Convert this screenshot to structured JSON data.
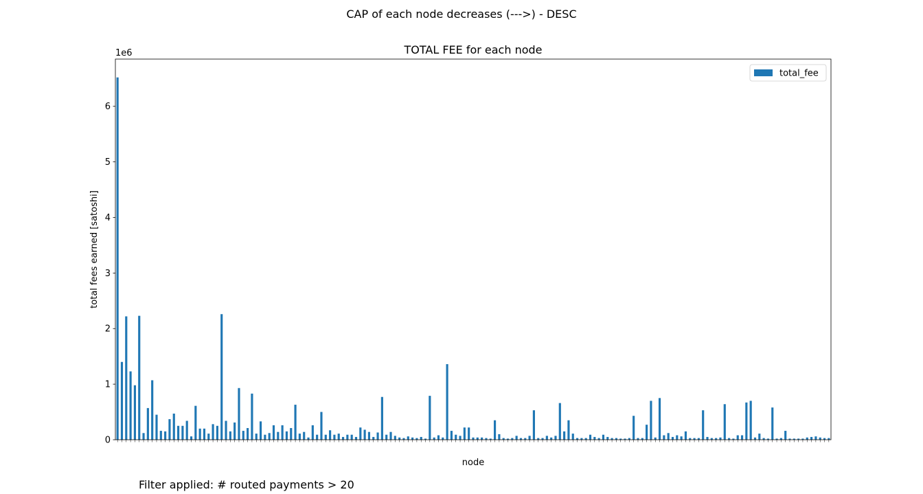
{
  "figure": {
    "suptitle": "CAP of each node decreases (--->) - DESC",
    "footnote": "Filter applied: # routed payments > 20"
  },
  "chart_data": {
    "type": "bar",
    "title": "TOTAL FEE for each node",
    "xlabel": "node",
    "ylabel": "total fees earned [satoshi]",
    "y_offset_text": "1e6",
    "ylim": [
      0,
      6850000
    ],
    "yticks": [
      0,
      1000000,
      2000000,
      3000000,
      4000000,
      5000000,
      6000000
    ],
    "ytick_labels": [
      "0",
      "1",
      "2",
      "3",
      "4",
      "5",
      "6"
    ],
    "legend": {
      "position": "top-right"
    },
    "grid": false,
    "colors": {
      "bar": "#1f77b4"
    },
    "series": [
      {
        "name": "total_fee",
        "values": [
          6520000,
          1400000,
          2220000,
          1230000,
          980000,
          2230000,
          120000,
          570000,
          1070000,
          450000,
          160000,
          150000,
          370000,
          470000,
          250000,
          250000,
          340000,
          60000,
          610000,
          200000,
          200000,
          110000,
          280000,
          250000,
          2260000,
          340000,
          150000,
          310000,
          930000,
          160000,
          210000,
          830000,
          110000,
          330000,
          90000,
          120000,
          260000,
          140000,
          260000,
          150000,
          210000,
          630000,
          110000,
          140000,
          40000,
          260000,
          90000,
          500000,
          90000,
          170000,
          90000,
          110000,
          50000,
          90000,
          90000,
          50000,
          220000,
          180000,
          140000,
          50000,
          130000,
          770000,
          90000,
          140000,
          70000,
          40000,
          30000,
          60000,
          40000,
          30000,
          50000,
          20000,
          790000,
          40000,
          80000,
          40000,
          1360000,
          160000,
          90000,
          70000,
          220000,
          220000,
          40000,
          40000,
          40000,
          30000,
          20000,
          350000,
          100000,
          30000,
          20000,
          30000,
          70000,
          30000,
          30000,
          70000,
          530000,
          30000,
          30000,
          70000,
          40000,
          70000,
          660000,
          150000,
          350000,
          110000,
          30000,
          30000,
          30000,
          90000,
          50000,
          30000,
          90000,
          50000,
          30000,
          30000,
          20000,
          20000,
          30000,
          430000,
          30000,
          30000,
          270000,
          700000,
          40000,
          750000,
          80000,
          120000,
          50000,
          80000,
          60000,
          150000,
          30000,
          30000,
          30000,
          530000,
          50000,
          30000,
          30000,
          40000,
          640000,
          30000,
          20000,
          80000,
          80000,
          670000,
          700000,
          40000,
          110000,
          30000,
          20000,
          580000,
          20000,
          30000,
          160000,
          20000,
          20000,
          20000,
          20000,
          40000,
          50000,
          60000,
          40000,
          30000,
          30000
        ]
      }
    ]
  }
}
